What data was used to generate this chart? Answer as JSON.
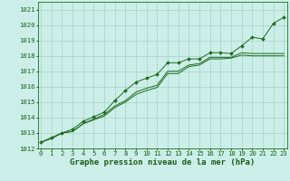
{
  "title": "Graphe pression niveau de la mer (hPa)",
  "hours": [
    0,
    1,
    2,
    3,
    4,
    5,
    6,
    7,
    8,
    9,
    10,
    11,
    12,
    13,
    14,
    15,
    16,
    17,
    18,
    19,
    20,
    21,
    22,
    23
  ],
  "line_top": [
    1012.4,
    1012.7,
    1013.0,
    1013.25,
    1013.75,
    1014.05,
    1014.35,
    1015.1,
    1015.75,
    1016.3,
    1016.55,
    1016.8,
    1017.55,
    1017.55,
    1017.8,
    1017.8,
    1018.2,
    1018.2,
    1018.15,
    1018.65,
    1019.2,
    1019.1,
    1020.1,
    1020.5
  ],
  "line_mid": [
    1012.4,
    1012.65,
    1013.0,
    1013.1,
    1013.6,
    1013.9,
    1014.2,
    1014.75,
    1015.1,
    1015.65,
    1015.9,
    1016.1,
    1017.0,
    1017.0,
    1017.4,
    1017.5,
    1017.9,
    1017.9,
    1017.9,
    1018.2,
    1018.15,
    1018.15,
    1018.15,
    1018.15
  ],
  "line_bot": [
    1012.4,
    1012.65,
    1013.0,
    1013.1,
    1013.6,
    1013.85,
    1014.1,
    1014.65,
    1015.0,
    1015.5,
    1015.75,
    1015.95,
    1016.85,
    1016.85,
    1017.3,
    1017.4,
    1017.8,
    1017.8,
    1017.85,
    1018.05,
    1018.0,
    1018.0,
    1018.0,
    1018.0
  ],
  "ylim": [
    1012.0,
    1021.5
  ],
  "yticks": [
    1012,
    1013,
    1014,
    1015,
    1016,
    1017,
    1018,
    1019,
    1020,
    1021
  ],
  "line_color": "#1f6b1f",
  "bg_color": "#cceee8",
  "grid_color": "#99ccbb",
  "text_color": "#1a5c1a",
  "title_fontsize": 6.5,
  "tick_fontsize": 5.2
}
